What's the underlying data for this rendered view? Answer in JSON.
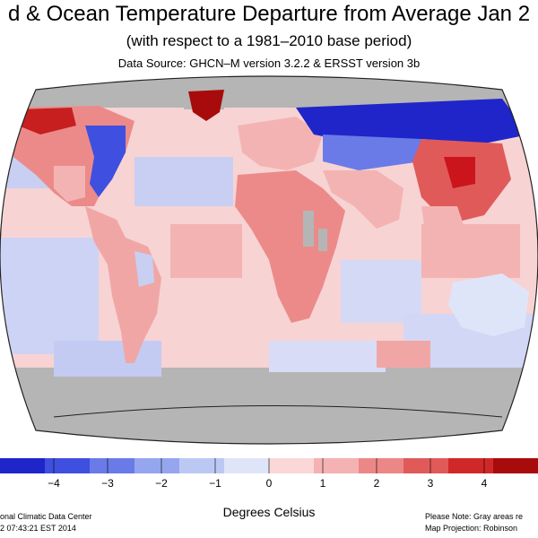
{
  "header": {
    "title": "d & Ocean Temperature Departure from Average Jan 2",
    "subtitle": "(with respect to a 1981–2010 base period)",
    "source": "Data Source: GHCN–M version 3.2.2 & ERSST version 3b"
  },
  "legend": {
    "unit_label": "Degrees Celsius",
    "ticks": [
      "−4",
      "−3",
      "−2",
      "−1",
      "0",
      "1",
      "2",
      "3",
      "4"
    ],
    "tick_values": [
      -4,
      -3,
      -2,
      -1,
      0,
      1,
      2,
      3,
      4
    ],
    "range": [
      -5,
      5
    ],
    "colors": [
      "#1f25c9",
      "#3f4fe0",
      "#6a7be8",
      "#95a6ee",
      "#bcc8f4",
      "#dfe5f9",
      "#fbd7d7",
      "#f4b2b2",
      "#ec8787",
      "#e05a5a",
      "#d02828",
      "#a80b0b"
    ],
    "no_data_color": "#b5b5b5"
  },
  "footer": {
    "left_line1": "onal Climatic Data Center",
    "left_line2": "2 07:43:21 EST 2014",
    "right_line1": "Please Note: Gray areas re",
    "right_line2": "Map Projection: Robinson"
  },
  "colors": {
    "ocean_warm": "#f8c9c9",
    "ocean_cool": "#c9cff4",
    "strong_warm": "#c9151b",
    "strong_cool": "#1e2fd0",
    "no_data": "#b5b5b5"
  }
}
